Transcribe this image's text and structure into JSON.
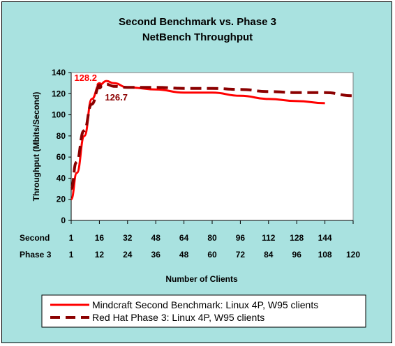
{
  "chart_data": {
    "type": "line",
    "title": "Second Benchmark vs. Phase 3",
    "subtitle": "NetBench Throughput",
    "ylabel": "Throughput (Mbits/Second)",
    "xlabel": "Number of Clients",
    "ylim": [
      0,
      140
    ],
    "yticks": [
      "0",
      "20",
      "40",
      "60",
      "80",
      "100",
      "120",
      "140"
    ],
    "x_axes": [
      {
        "name": "Second",
        "ticks": [
          "1",
          "16",
          "32",
          "48",
          "64",
          "80",
          "96",
          "112",
          "128",
          "144"
        ]
      },
      {
        "name": "Phase 3",
        "ticks": [
          "1",
          "12",
          "24",
          "36",
          "48",
          "60",
          "72",
          "84",
          "96",
          "108",
          "120"
        ]
      }
    ],
    "series": [
      {
        "name": "Mindcraft Second Benchmark: Linux 4P, W95 clients",
        "color": "#ff0000",
        "style": "solid",
        "axis": "Second",
        "x": [
          1,
          4,
          8,
          12,
          16,
          20,
          24,
          32,
          48,
          64,
          80,
          96,
          112,
          128,
          144
        ],
        "y": [
          20,
          45,
          80,
          115,
          128.2,
          132,
          130,
          126,
          124,
          121,
          121,
          118,
          115,
          113,
          111
        ]
      },
      {
        "name": "Red Hat Phase 3: Linux 4P, W95 clients",
        "color": "#8b0000",
        "style": "dashed",
        "axis": "Phase 3",
        "x": [
          1,
          3,
          6,
          9,
          12,
          15,
          18,
          24,
          36,
          48,
          60,
          72,
          84,
          96,
          108,
          120
        ],
        "y": [
          30,
          55,
          85,
          110,
          126.7,
          129,
          127,
          126,
          126,
          125,
          125,
          124,
          122,
          121,
          121,
          118
        ]
      }
    ],
    "annotations": [
      {
        "text": "128.2",
        "color": "#ff0000"
      },
      {
        "text": "126.7",
        "color": "#8b0000"
      }
    ],
    "grid": false,
    "legend_position": "bottom"
  }
}
